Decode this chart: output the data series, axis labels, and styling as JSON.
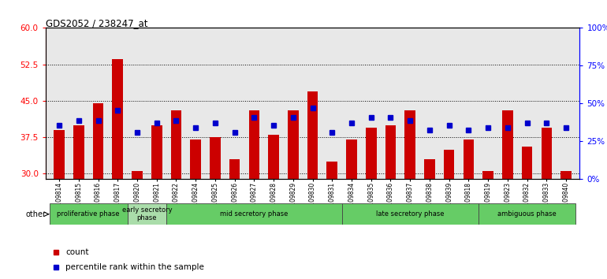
{
  "title": "GDS2052 / 238247_at",
  "samples": [
    "GSM109814",
    "GSM109815",
    "GSM109816",
    "GSM109817",
    "GSM109820",
    "GSM109821",
    "GSM109822",
    "GSM109824",
    "GSM109825",
    "GSM109826",
    "GSM109827",
    "GSM109828",
    "GSM109829",
    "GSM109830",
    "GSM109831",
    "GSM109834",
    "GSM109835",
    "GSM109836",
    "GSM109837",
    "GSM109838",
    "GSM109839",
    "GSM109818",
    "GSM109819",
    "GSM109823",
    "GSM109832",
    "GSM109833",
    "GSM109840"
  ],
  "red_values": [
    39.0,
    40.0,
    44.5,
    53.5,
    30.5,
    40.0,
    43.0,
    37.0,
    37.5,
    33.0,
    43.0,
    38.0,
    43.0,
    47.0,
    32.5,
    37.0,
    39.5,
    40.0,
    43.0,
    33.0,
    35.0,
    37.0,
    30.5,
    43.0,
    35.5,
    39.5,
    30.5
  ],
  "blue_values": [
    40.0,
    41.0,
    41.0,
    43.0,
    38.5,
    40.5,
    41.0,
    39.5,
    40.5,
    38.5,
    41.5,
    40.0,
    41.5,
    43.5,
    38.5,
    40.5,
    41.5,
    41.5,
    41.0,
    39.0,
    40.0,
    39.0,
    39.5,
    39.5,
    40.5,
    40.5,
    39.5
  ],
  "phases": [
    {
      "label": "proliferative phase",
      "start": 0,
      "end": 4,
      "color": "#88dd88"
    },
    {
      "label": "early secretory\nphase",
      "start": 4,
      "end": 6,
      "color": "#bbeeaa"
    },
    {
      "label": "mid secretory phase",
      "start": 6,
      "end": 15,
      "color": "#88dd88"
    },
    {
      "label": "late secretory phase",
      "start": 15,
      "end": 22,
      "color": "#88dd88"
    },
    {
      "label": "ambiguous phase",
      "start": 22,
      "end": 27,
      "color": "#88dd88"
    }
  ],
  "ylim_left": [
    29,
    60
  ],
  "ylim_right": [
    0,
    100
  ],
  "yticks_left": [
    30,
    37.5,
    45,
    52.5,
    60
  ],
  "yticks_right": [
    0,
    25,
    50,
    75,
    100
  ],
  "bar_width": 0.55,
  "red_color": "#cc0000",
  "blue_color": "#0000cc",
  "plot_bg": "#e8e8e8",
  "fig_bg": "#ffffff"
}
